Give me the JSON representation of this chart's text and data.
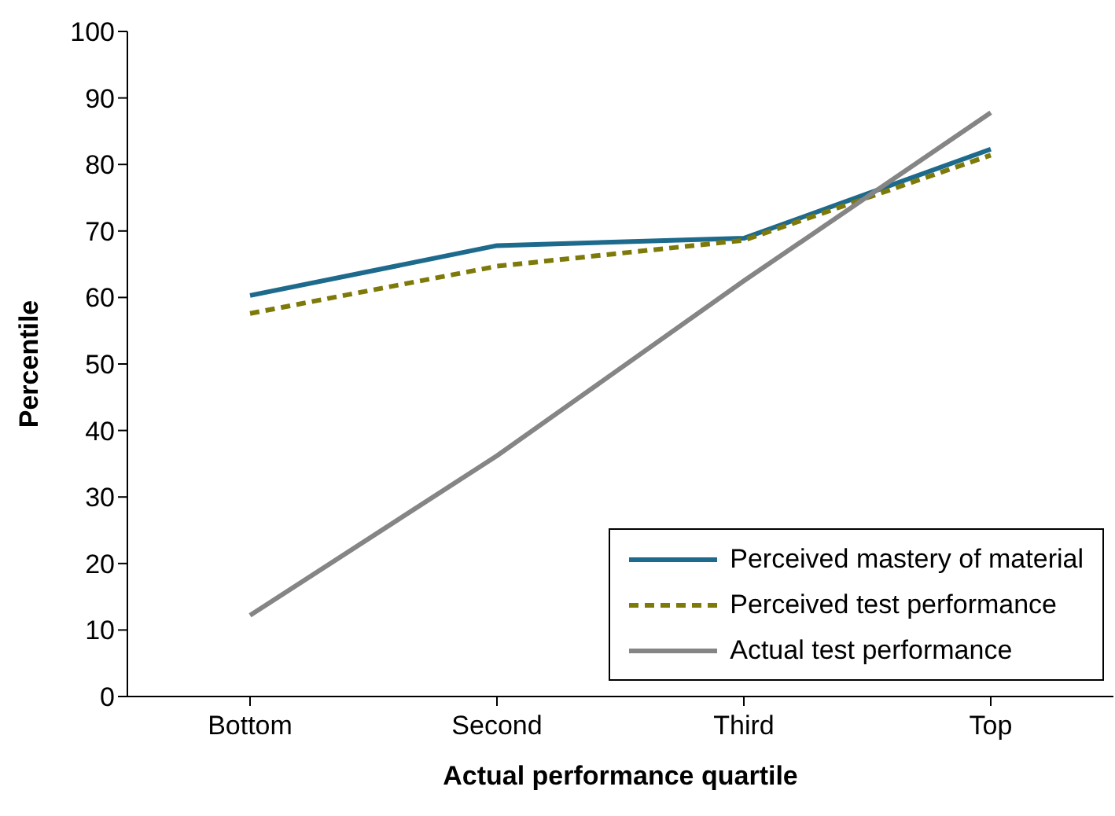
{
  "chart_data": {
    "type": "line",
    "xlabel": "Actual performance quartile",
    "ylabel": "Percentile",
    "categories": [
      "Bottom",
      "Second",
      "Third",
      "Top"
    ],
    "series": [
      {
        "name": "Perceived mastery of material",
        "color": "#1d6a8c",
        "values": [
          60.3,
          67.8,
          68.9,
          82.3
        ],
        "line_style": "solid"
      },
      {
        "name": "Perceived test performance",
        "color": "#7d7a0a",
        "values": [
          57.6,
          64.7,
          68.6,
          81.4
        ],
        "line_style": "dashed"
      },
      {
        "name": "Actual test performance",
        "color": "#858585",
        "values": [
          12.2,
          36.2,
          62.5,
          87.8
        ],
        "line_style": "solid"
      }
    ],
    "ylim": [
      0,
      100
    ],
    "yticks": [
      0,
      10,
      20,
      30,
      40,
      50,
      60,
      70,
      80,
      90,
      100
    ],
    "legend": "bottom right",
    "marker": "none"
  }
}
